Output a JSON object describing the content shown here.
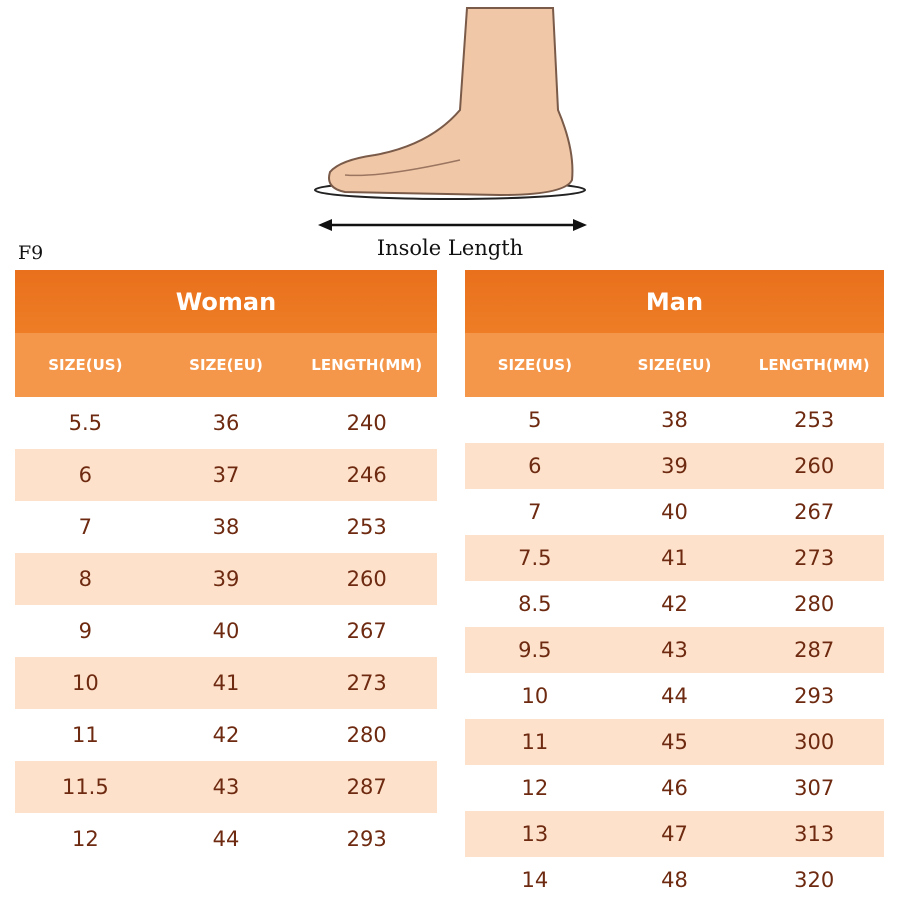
{
  "illustration_label": "Insole Length",
  "code": "F9",
  "tables": [
    {
      "title": "Woman",
      "headers": [
        "SIZE(US)",
        "SIZE(EU)",
        "LENGTH(MM)"
      ],
      "rows": [
        [
          "5.5",
          "36",
          "240"
        ],
        [
          "6",
          "37",
          "246"
        ],
        [
          "7",
          "38",
          "253"
        ],
        [
          "8",
          "39",
          "260"
        ],
        [
          "9",
          "40",
          "267"
        ],
        [
          "10",
          "41",
          "273"
        ],
        [
          "11",
          "42",
          "280"
        ],
        [
          "11.5",
          "43",
          "287"
        ],
        [
          "12",
          "44",
          "293"
        ]
      ]
    },
    {
      "title": "Man",
      "headers": [
        "SIZE(US)",
        "SIZE(EU)",
        "LENGTH(MM)"
      ],
      "rows": [
        [
          "5",
          "38",
          "253"
        ],
        [
          "6",
          "39",
          "260"
        ],
        [
          "7",
          "40",
          "267"
        ],
        [
          "7.5",
          "41",
          "273"
        ],
        [
          "8.5",
          "42",
          "280"
        ],
        [
          "9.5",
          "43",
          "287"
        ],
        [
          "10",
          "44",
          "293"
        ],
        [
          "11",
          "45",
          "300"
        ],
        [
          "12",
          "46",
          "307"
        ],
        [
          "13",
          "47",
          "313"
        ],
        [
          "14",
          "48",
          "320"
        ]
      ]
    }
  ]
}
